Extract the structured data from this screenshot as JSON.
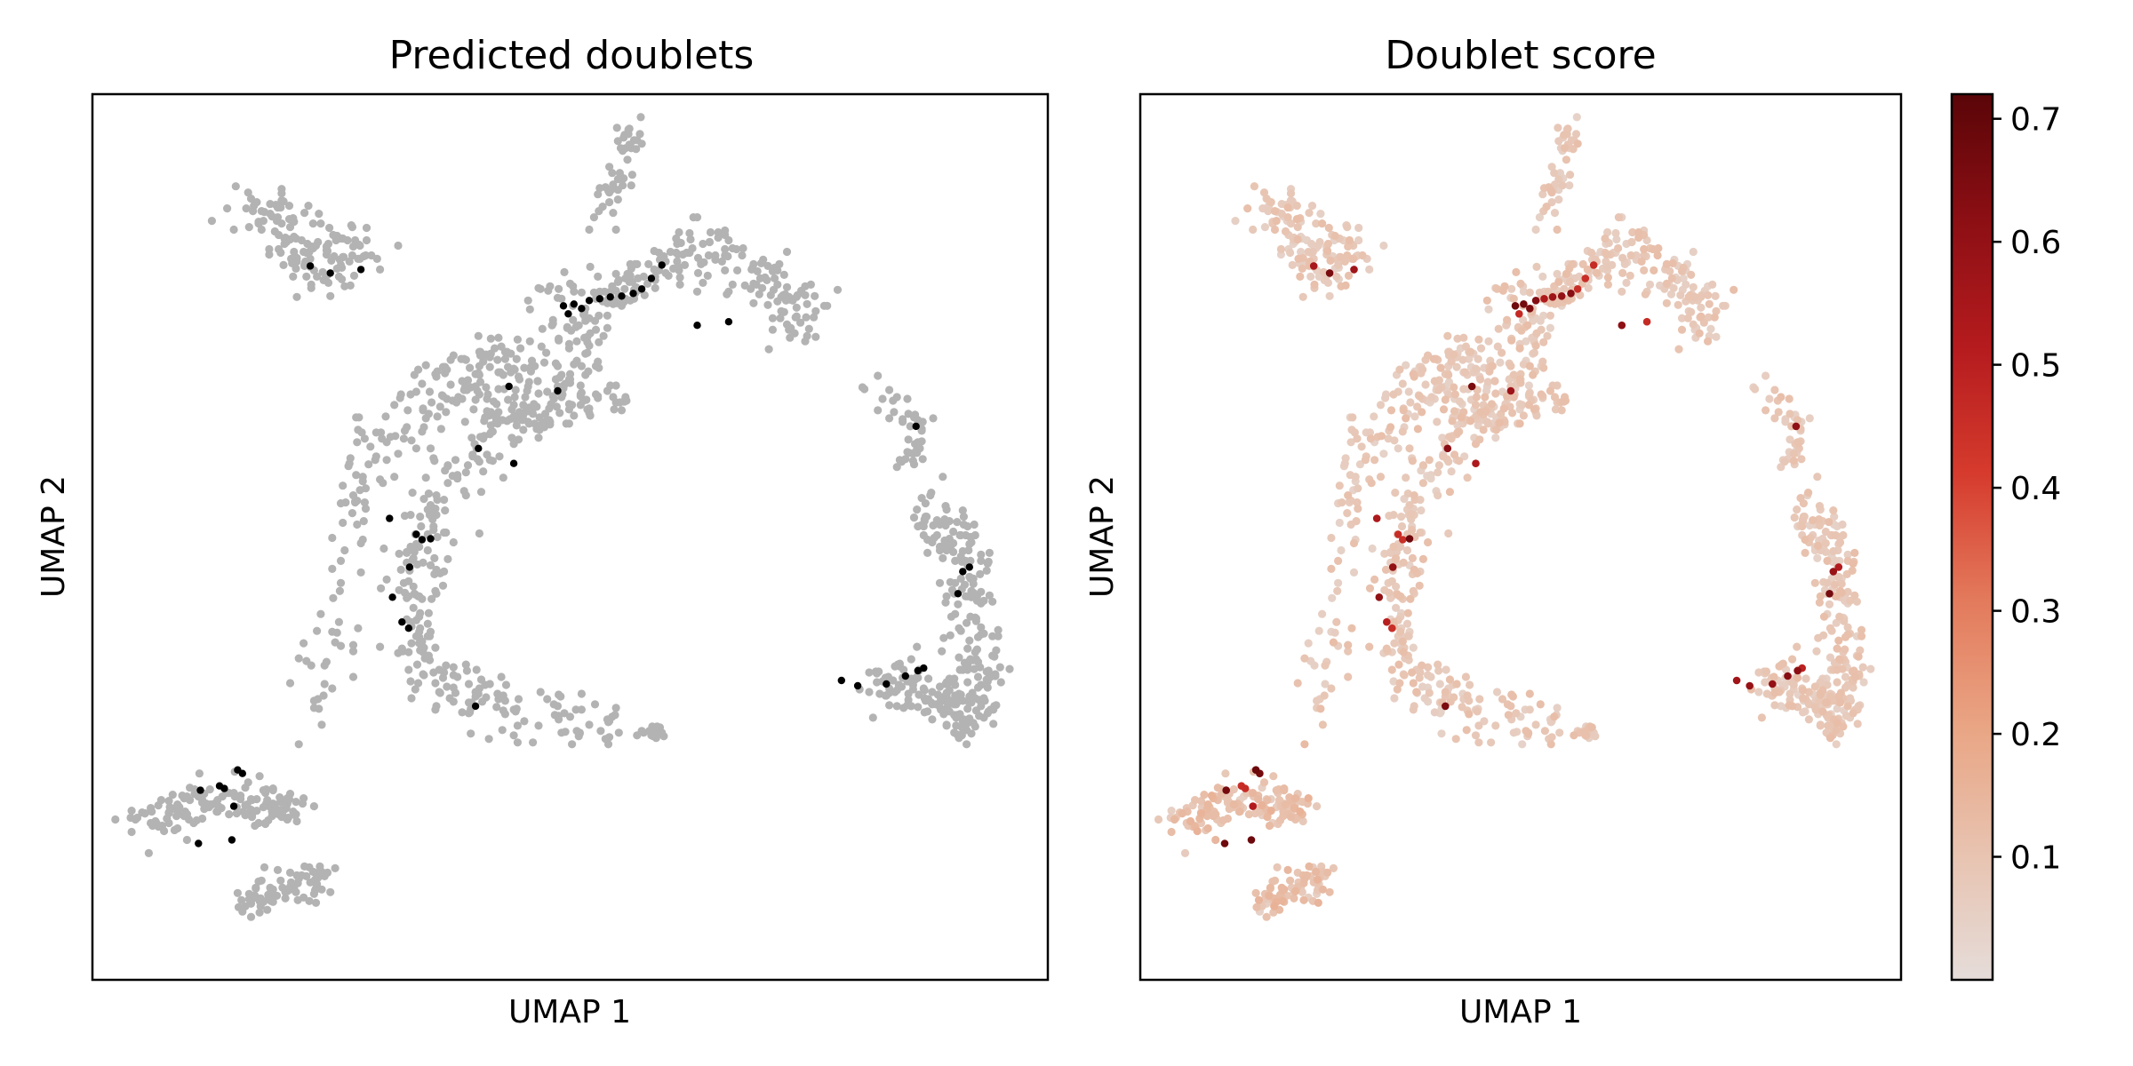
{
  "chart_data": [
    {
      "type": "scatter",
      "title": "Predicted doublets",
      "xlabel": "UMAP 1",
      "ylabel": "UMAP 2",
      "xlim": [
        0,
        100
      ],
      "ylim": [
        0,
        100
      ],
      "grid": false,
      "xticks": [],
      "yticks": [],
      "colors": {
        "singlet": "#b3b3b3",
        "doublet": "#000000"
      },
      "series": [
        {
          "values": []
        },
        {
          "values": [
            [
              22.8,
              80.6
            ],
            [
              24.9,
              79.8
            ],
            [
              28.1,
              80.2
            ],
            [
              49.3,
              76.1
            ],
            [
              49.8,
              75.2
            ],
            [
              50.4,
              76.3
            ],
            [
              51.2,
              75.8
            ],
            [
              52.0,
              76.7
            ],
            [
              53.1,
              76.9
            ],
            [
              54.2,
              77.1
            ],
            [
              55.4,
              77.2
            ],
            [
              56.6,
              77.5
            ],
            [
              57.5,
              78.0
            ],
            [
              58.5,
              79.2
            ],
            [
              59.6,
              80.7
            ],
            [
              63.3,
              73.9
            ],
            [
              66.6,
              74.3
            ],
            [
              43.6,
              67.0
            ],
            [
              48.7,
              66.5
            ],
            [
              40.4,
              60.0
            ],
            [
              44.1,
              58.3
            ],
            [
              31.1,
              52.1
            ],
            [
              33.9,
              50.3
            ],
            [
              34.5,
              49.7
            ],
            [
              35.4,
              49.8
            ],
            [
              33.2,
              46.6
            ],
            [
              31.4,
              43.2
            ],
            [
              32.4,
              40.4
            ],
            [
              33.1,
              39.7
            ],
            [
              40.1,
              30.9
            ],
            [
              15.2,
              23.7
            ],
            [
              15.7,
              23.3
            ],
            [
              13.3,
              21.9
            ],
            [
              13.8,
              21.6
            ],
            [
              11.3,
              21.4
            ],
            [
              14.8,
              19.6
            ],
            [
              11.1,
              15.4
            ],
            [
              14.6,
              15.8
            ],
            [
              86.2,
              62.5
            ],
            [
              91.1,
              46.1
            ],
            [
              91.8,
              46.6
            ],
            [
              90.6,
              43.6
            ],
            [
              78.4,
              33.8
            ],
            [
              80.1,
              33.2
            ],
            [
              83.1,
              33.4
            ],
            [
              85.1,
              34.3
            ],
            [
              86.4,
              34.9
            ],
            [
              87.0,
              35.2
            ]
          ]
        }
      ]
    },
    {
      "type": "scatter",
      "title": "Doublet score",
      "xlabel": "UMAP 1",
      "ylabel": "UMAP 2",
      "xlim": [
        0,
        100
      ],
      "ylim": [
        0,
        100
      ],
      "grid": false,
      "xticks": [],
      "yticks": [],
      "colorbar": {
        "ticks": [
          {
            "value": 0.1,
            "label": "0.1"
          },
          {
            "value": 0.2,
            "label": "0.2"
          },
          {
            "value": 0.3,
            "label": "0.3"
          },
          {
            "value": 0.4,
            "label": "0.4"
          },
          {
            "value": 0.5,
            "label": "0.5"
          },
          {
            "value": 0.6,
            "label": "0.6"
          },
          {
            "value": 0.7,
            "label": "0.7"
          }
        ],
        "range": [
          0.0,
          0.72
        ],
        "colormap": [
          "#e5dcd9",
          "#e8c3b0",
          "#e9a584",
          "#e37a5c",
          "#d63b2d",
          "#b51b1e",
          "#8c0f14",
          "#5a0508"
        ]
      },
      "series": [
        {
          "values": []
        }
      ]
    }
  ]
}
